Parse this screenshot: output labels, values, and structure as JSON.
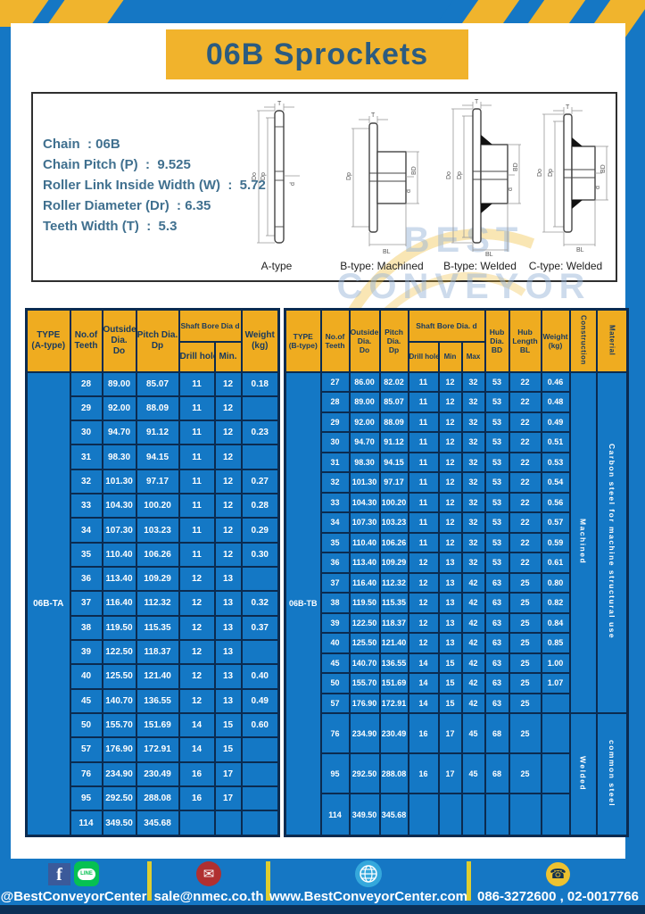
{
  "header": {
    "title": "06B Sprockets"
  },
  "specs": {
    "lines": [
      "Chain  : 06B",
      "Chain Pitch (P)  :  9.525",
      "Roller Link Inside Width (W)  :  5.72",
      "Roller Diameter (Dr)  : 6.35",
      "Teeth Width (T)  :  5.3"
    ]
  },
  "diagram": {
    "labels": [
      "A-type",
      "B-type: Machined",
      "B-type: Welded",
      "C-type: Welded"
    ],
    "dims": {
      "t": "T",
      "do": "Do",
      "dp": "Dp",
      "d": "d",
      "bd": "BD",
      "bl": "BL"
    },
    "watermark": "BEST\nCONVEYOR\nCENTER"
  },
  "table_a": {
    "type_label": "06B-TA",
    "headers": {
      "type": "TYPE\n(A-type)",
      "teeth": "No.of\nTeeth",
      "outside": "Outside\nDia.\nDo",
      "pitch": "Pitch Dia.\nDp",
      "shaft_group": "Shaft Bore Dia d",
      "drill": "Drill hole",
      "min": "Min.",
      "weight": "Weight\n(kg)"
    },
    "rows": [
      [
        "28",
        "89.00",
        "85.07",
        "11",
        "12",
        "0.18"
      ],
      [
        "29",
        "92.00",
        "88.09",
        "11",
        "12",
        ""
      ],
      [
        "30",
        "94.70",
        "91.12",
        "11",
        "12",
        "0.23"
      ],
      [
        "31",
        "98.30",
        "94.15",
        "11",
        "12",
        ""
      ],
      [
        "32",
        "101.30",
        "97.17",
        "11",
        "12",
        "0.27"
      ],
      [
        "33",
        "104.30",
        "100.20",
        "11",
        "12",
        "0.28"
      ],
      [
        "34",
        "107.30",
        "103.23",
        "11",
        "12",
        "0.29"
      ],
      [
        "35",
        "110.40",
        "106.26",
        "11",
        "12",
        "0.30"
      ],
      [
        "36",
        "113.40",
        "109.29",
        "12",
        "13",
        ""
      ],
      [
        "37",
        "116.40",
        "112.32",
        "12",
        "13",
        "0.32"
      ],
      [
        "38",
        "119.50",
        "115.35",
        "12",
        "13",
        "0.37"
      ],
      [
        "39",
        "122.50",
        "118.37",
        "12",
        "13",
        ""
      ],
      [
        "40",
        "125.50",
        "121.40",
        "12",
        "13",
        "0.40"
      ],
      [
        "45",
        "140.70",
        "136.55",
        "12",
        "13",
        "0.49"
      ],
      [
        "50",
        "155.70",
        "151.69",
        "14",
        "15",
        "0.60"
      ],
      [
        "57",
        "176.90",
        "172.91",
        "14",
        "15",
        ""
      ],
      [
        "76",
        "234.90",
        "230.49",
        "16",
        "17",
        ""
      ],
      [
        "95",
        "292.50",
        "288.08",
        "16",
        "17",
        ""
      ],
      [
        "114",
        "349.50",
        "345.68",
        "",
        "",
        ""
      ]
    ]
  },
  "table_b": {
    "type_label": "06B-TB",
    "headers": {
      "type": "TYPE\n(B-type)",
      "teeth": "No.of\nTeeth",
      "outside": "Outside\nDia.\nDo",
      "pitch": "Pitch\nDia.\nDp",
      "shaft_group": "Shaft Bore Dia.  d",
      "drill": "Drill hole",
      "min": "Min",
      "max": "Max",
      "hub_dia": "Hub\nDia.\nBD",
      "hub_len": "Hub\nLength\nBL",
      "weight": "Weight\n(kg)",
      "construction": "Construction",
      "material": "Material"
    },
    "rows": [
      [
        "27",
        "86.00",
        "82.02",
        "11",
        "12",
        "32",
        "53",
        "22",
        "0.46"
      ],
      [
        "28",
        "89.00",
        "85.07",
        "11",
        "12",
        "32",
        "53",
        "22",
        "0.48"
      ],
      [
        "29",
        "92.00",
        "88.09",
        "11",
        "12",
        "32",
        "53",
        "22",
        "0.49"
      ],
      [
        "30",
        "94.70",
        "91.12",
        "11",
        "12",
        "32",
        "53",
        "22",
        "0.51"
      ],
      [
        "31",
        "98.30",
        "94.15",
        "11",
        "12",
        "32",
        "53",
        "22",
        "0.53"
      ],
      [
        "32",
        "101.30",
        "97.17",
        "11",
        "12",
        "32",
        "53",
        "22",
        "0.54"
      ],
      [
        "33",
        "104.30",
        "100.20",
        "11",
        "12",
        "32",
        "53",
        "22",
        "0.56"
      ],
      [
        "34",
        "107.30",
        "103.23",
        "11",
        "12",
        "32",
        "53",
        "22",
        "0.57"
      ],
      [
        "35",
        "110.40",
        "106.26",
        "11",
        "12",
        "32",
        "53",
        "22",
        "0.59"
      ],
      [
        "36",
        "113.40",
        "109.29",
        "12",
        "13",
        "32",
        "53",
        "22",
        "0.61"
      ],
      [
        "37",
        "116.40",
        "112.32",
        "12",
        "13",
        "42",
        "63",
        "25",
        "0.80"
      ],
      [
        "38",
        "119.50",
        "115.35",
        "12",
        "13",
        "42",
        "63",
        "25",
        "0.82"
      ],
      [
        "39",
        "122.50",
        "118.37",
        "12",
        "13",
        "42",
        "63",
        "25",
        "0.84"
      ],
      [
        "40",
        "125.50",
        "121.40",
        "12",
        "13",
        "42",
        "63",
        "25",
        "0.85"
      ],
      [
        "45",
        "140.70",
        "136.55",
        "14",
        "15",
        "42",
        "63",
        "25",
        "1.00"
      ],
      [
        "50",
        "155.70",
        "151.69",
        "14",
        "15",
        "42",
        "63",
        "25",
        "1.07"
      ],
      [
        "57",
        "176.90",
        "172.91",
        "14",
        "15",
        "42",
        "63",
        "25",
        ""
      ],
      [
        "76",
        "234.90",
        "230.49",
        "16",
        "17",
        "45",
        "68",
        "25",
        ""
      ],
      [
        "95",
        "292.50",
        "288.08",
        "16",
        "17",
        "45",
        "68",
        "25",
        ""
      ],
      [
        "114",
        "349.50",
        "345.68",
        "",
        "",
        "",
        "",
        "",
        ""
      ]
    ],
    "construction_spans": [
      {
        "label": "Machined",
        "rows": 17
      },
      {
        "label": "Welded",
        "rows": 3
      }
    ],
    "material_spans": [
      {
        "label": "Carbon steel for machine structural use",
        "rows": 17
      },
      {
        "label": "common steel",
        "rows": 3
      }
    ]
  },
  "footer": {
    "social": "@BestConveyorCenter",
    "email": "sale@nmec.co.th",
    "website": "www.BestConveyorCenter.com",
    "phone": "086-3272600 , 02-0017766",
    "icons": {
      "facebook": "f",
      "line": "LINE",
      "mail": "✉",
      "phone": "☎"
    }
  }
}
